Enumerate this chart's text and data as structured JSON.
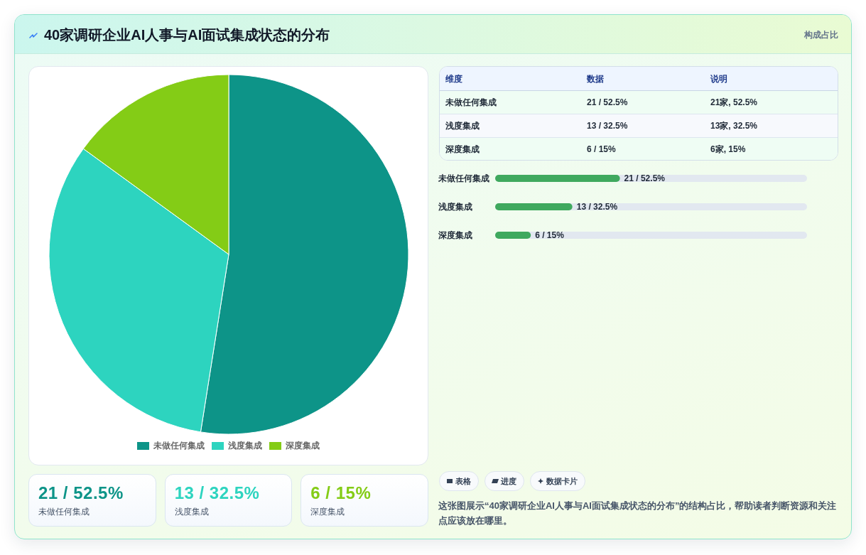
{
  "chart_data": [
    {
      "type": "pie",
      "title": "40家调研企业AI人事与AI面试集成状态的分布",
      "categories": [
        "未做任何集成",
        "浅度集成",
        "深度集成"
      ],
      "values": [
        52.5,
        32.5,
        15
      ],
      "colors": [
        "#0d9488",
        "#2dd4bf",
        "#84cc16"
      ],
      "legend": "bottom"
    },
    {
      "type": "other",
      "subtitle": "构成占比",
      "annotations": [
        "维度",
        "数据",
        "说明",
        "未做任何集成",
        "21 / 52.5%",
        "21家, 52.5%",
        "浅度集成",
        "13 / 32.5%",
        "13家, 32.5%",
        "深度集成",
        "6 / 15%",
        "6家, 15%"
      ]
    },
    {
      "type": "bar",
      "orientation": "horizontal",
      "categories": [
        "未做任何集成",
        "浅度集成",
        "深度集成"
      ],
      "values": [
        21,
        13,
        6
      ],
      "value_labels": [
        "21 / 52.5%",
        "13 / 32.5%",
        "6 / 15%"
      ],
      "xlim": [
        0,
        52.5
      ],
      "color": "#3fa95e",
      "tick_labels": "y"
    },
    {
      "type": "other",
      "annotations": [
        "21 / 52.5%",
        "未做任何集成",
        "13 / 32.5%",
        "浅度集成",
        "6 / 15%",
        "深度集成"
      ],
      "colors": [
        "#0d9488",
        "#2dd4bf",
        "#84cc16"
      ]
    },
    {
      "type": "other",
      "annotations": [
        "表格",
        "进度",
        "数据卡片",
        "这张图展示“40家调研企业AI人事与AI面试集成状态的分布”的结构占比，帮助读者判断资源和关注点应该放在哪里。"
      ]
    }
  ]
}
